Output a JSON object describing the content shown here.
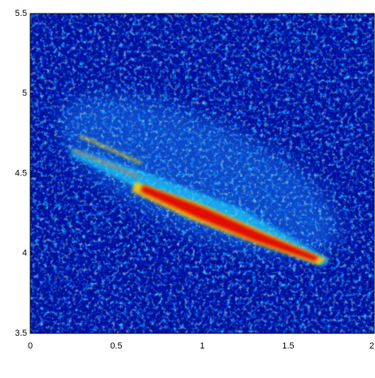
{
  "chart_data": {
    "type": "heatmap",
    "xlim": [
      0,
      2
    ],
    "xticks": [
      0,
      0.5,
      1,
      1.5,
      2
    ],
    "ylim": [
      3.5,
      5.5
    ],
    "yticks": [
      3.5,
      4,
      4.5,
      5,
      5.5
    ]
  }
}
